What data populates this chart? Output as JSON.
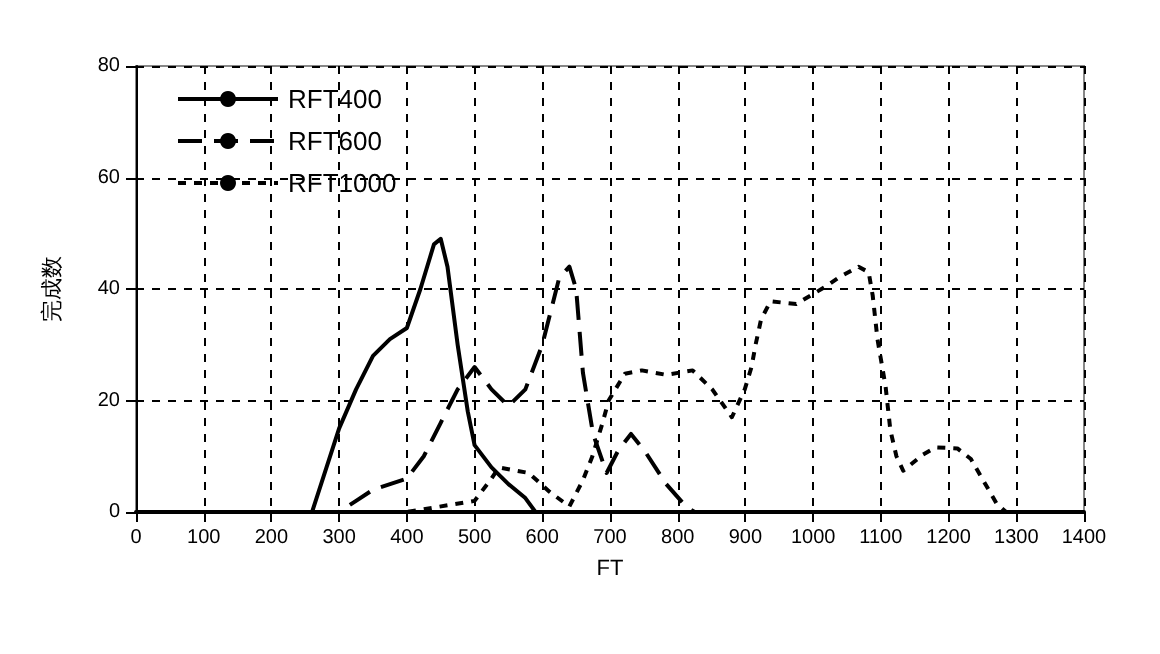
{
  "chart_data": {
    "type": "line",
    "xlabel": "FT",
    "ylabel": "完成数",
    "xlim": [
      0,
      1400
    ],
    "ylim": [
      0,
      80
    ],
    "xticks": [
      0,
      100,
      200,
      300,
      400,
      500,
      600,
      700,
      800,
      900,
      1000,
      1100,
      1200,
      1300,
      1400
    ],
    "yticks": [
      0,
      20,
      40,
      60,
      80
    ],
    "grid": true,
    "legend": "top left",
    "marker": "none",
    "series": [
      {
        "name": "RFT400",
        "color": "#000000",
        "line_style": "solid",
        "x": [
          0,
          260,
          300,
          325,
          350,
          375,
          400,
          420,
          440,
          450,
          460,
          475,
          490,
          500,
          525,
          550,
          575,
          590,
          1400
        ],
        "values": [
          0,
          0,
          15,
          22,
          28,
          31,
          33,
          40,
          48,
          49,
          44,
          30,
          18,
          12,
          8,
          5,
          2.5,
          0,
          0
        ]
      },
      {
        "name": "RFT600",
        "color": "#000000",
        "line_style": "dashed",
        "x": [
          0,
          300,
          325,
          350,
          400,
          425,
          450,
          475,
          500,
          525,
          550,
          575,
          600,
          625,
          640,
          650,
          660,
          675,
          695,
          712,
          731,
          751,
          783,
          812,
          825,
          1400
        ],
        "values": [
          0,
          0,
          2,
          4,
          6,
          10,
          16,
          22,
          26,
          22,
          19,
          22,
          30,
          42,
          44,
          40,
          25,
          14,
          7,
          11,
          14,
          11,
          5,
          1,
          0,
          0
        ]
      },
      {
        "name": "RFT1000",
        "color": "#000000",
        "line_style": "dotted",
        "x": [
          0,
          400,
          500,
          525,
          536,
          580,
          611,
          640,
          660,
          674,
          689,
          698,
          722,
          747,
          783,
          822,
          851,
          880,
          899,
          909,
          915,
          923,
          937,
          975,
          1018,
          1037,
          1067,
          1082,
          1088,
          1095,
          1107,
          1114,
          1123,
          1133,
          1162,
          1181,
          1213,
          1233,
          1251,
          1271,
          1285,
          1400
        ],
        "values": [
          0,
          0,
          2,
          6,
          8,
          7,
          3.6,
          1,
          5.7,
          10,
          16,
          20,
          24.8,
          25.4,
          24.6,
          25.4,
          22,
          17,
          22,
          26,
          30,
          34.5,
          37.8,
          37.3,
          40.4,
          42,
          44,
          43,
          38.8,
          31,
          22.5,
          14.7,
          10,
          7.4,
          10.3,
          11.6,
          11.4,
          9.5,
          5.7,
          1.5,
          0,
          0
        ]
      }
    ]
  }
}
